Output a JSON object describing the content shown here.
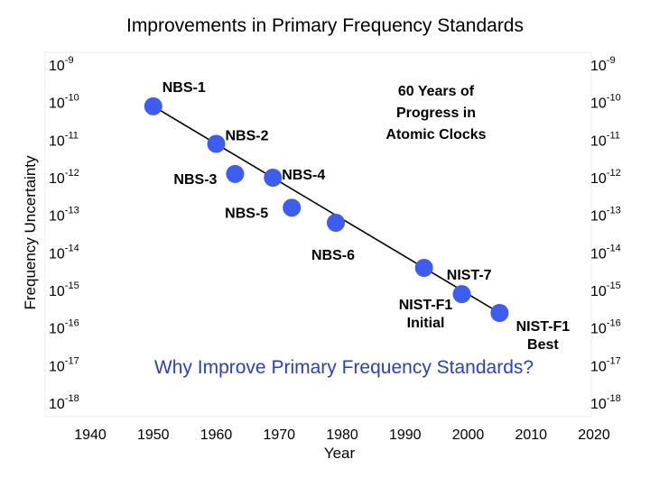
{
  "chart_data": {
    "type": "scatter",
    "title": "Improvements in Primary Frequency Standards",
    "xlabel": "Year",
    "ylabel": "Frequency Uncertainty",
    "xlim": [
      1940,
      2020
    ],
    "ylim": [
      -18,
      -9
    ],
    "y_scale": "log",
    "x_ticks": [
      "1940",
      "1950",
      "1960",
      "1970",
      "1980",
      "1990",
      "2000",
      "2010",
      "2020"
    ],
    "y_ticks": [
      {
        "base": "10",
        "exp": "-9"
      },
      {
        "base": "10",
        "exp": "-10"
      },
      {
        "base": "10",
        "exp": "-11"
      },
      {
        "base": "10",
        "exp": "-12"
      },
      {
        "base": "10",
        "exp": "-13"
      },
      {
        "base": "10",
        "exp": "-14"
      },
      {
        "base": "10",
        "exp": "-15"
      },
      {
        "base": "10",
        "exp": "-16"
      },
      {
        "base": "10",
        "exp": "-17"
      },
      {
        "base": "10",
        "exp": "-18"
      }
    ],
    "series": [
      {
        "points": [
          {
            "x": 1950,
            "y": -10.1,
            "label": "NBS-1"
          },
          {
            "x": 1960,
            "y": -11.1,
            "label": "NBS-2"
          },
          {
            "x": 1963,
            "y": -11.9,
            "label": "NBS-3"
          },
          {
            "x": 1969,
            "y": -12.0,
            "label": "NBS-4"
          },
          {
            "x": 1972,
            "y": -12.8,
            "label": "NBS-5"
          },
          {
            "x": 1979,
            "y": -13.2,
            "label": "NBS-6"
          },
          {
            "x": 1993,
            "y": -14.4,
            "label": "NIST-7"
          },
          {
            "x": 1999,
            "y": -15.1,
            "label": "NIST-F1 Initial"
          },
          {
            "x": 2005,
            "y": -15.6,
            "label": "NIST-F1 Best"
          }
        ]
      }
    ],
    "trend_line": {
      "from": [
        1950,
        -10.1
      ],
      "to": [
        2005,
        -15.6
      ]
    },
    "annotations": [
      "60 Years of Progress in Atomic Clocks",
      "Why Improve Primary Frequency Standards?"
    ],
    "colors": {
      "points": "#3d5cf0",
      "line": "#000000",
      "annotation_text": "#2b3fc0"
    },
    "grid": false,
    "legend": "none"
  }
}
